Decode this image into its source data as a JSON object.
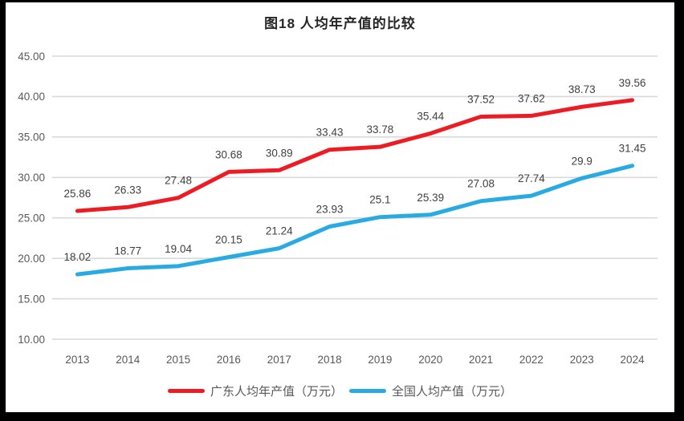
{
  "title": "图18 人均年产值的比较",
  "chart_data": {
    "type": "line",
    "title": "图18 人均年产值的比较",
    "categories": [
      "2013",
      "2014",
      "2015",
      "2016",
      "2017",
      "2018",
      "2019",
      "2020",
      "2021",
      "2022",
      "2023",
      "2024"
    ],
    "series": [
      {
        "name": "广东人均年产值（万元）",
        "color": "#ed1c24",
        "values": [
          25.86,
          26.33,
          27.48,
          30.68,
          30.89,
          33.43,
          33.78,
          35.44,
          37.52,
          37.62,
          38.73,
          39.56
        ],
        "labels": [
          "25.86",
          "26.33",
          "27.48",
          "30.68",
          "30.89",
          "33.43",
          "33.78",
          "35.44",
          "37.52",
          "37.62",
          "38.73",
          "39.56"
        ]
      },
      {
        "name": "全国人均产值（万元）",
        "color": "#29abe2",
        "values": [
          18.02,
          18.77,
          19.04,
          20.15,
          21.24,
          23.93,
          25.1,
          25.39,
          27.08,
          27.74,
          29.9,
          31.45
        ],
        "labels": [
          "18.02",
          "18.77",
          "19.04",
          "20.15",
          "21.24",
          "23.93",
          "25.1",
          "25.39",
          "27.08",
          "27.74",
          "29.9",
          "31.45"
        ]
      }
    ],
    "ylim": [
      10,
      45
    ],
    "ytick_interval": 5,
    "ytick_labels": [
      "45.00",
      "40.00",
      "35.00",
      "30.00",
      "25.00",
      "20.00",
      "15.00",
      "10.00"
    ],
    "grid": "horizontal",
    "legend_position": "bottom",
    "colors": {
      "gridline": "#d9d9d9",
      "axis_text": "#595959",
      "data_label_text": "#404040",
      "title_text": "#262626",
      "frame": "#000000",
      "background": "#ffffff"
    }
  }
}
